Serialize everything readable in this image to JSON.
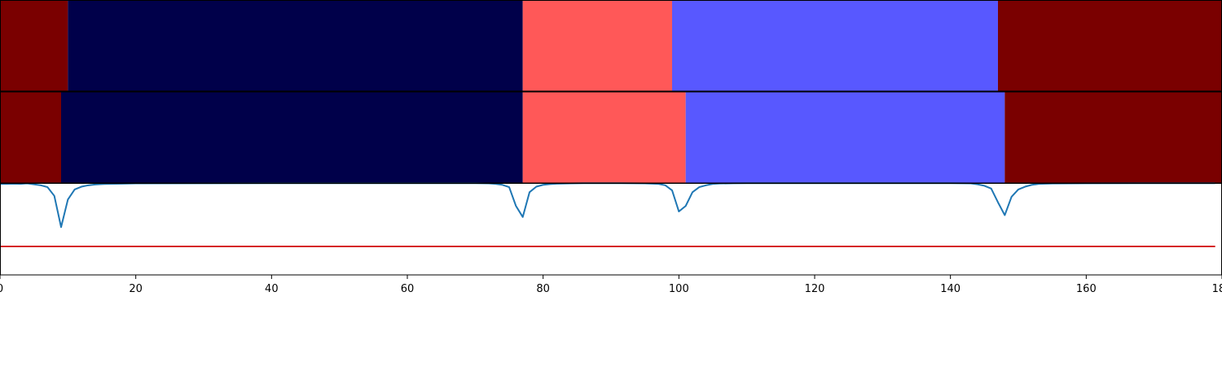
{
  "chart_data": {
    "type": "heatmap",
    "x_range": [
      0,
      180
    ],
    "x_ticks": [
      0,
      20,
      40,
      60,
      80,
      100,
      120,
      140,
      160,
      180
    ],
    "x_tick_labels": [
      "0",
      "20",
      "40",
      "60",
      "80",
      "100",
      "120",
      "140",
      "160",
      "180"
    ],
    "segment_rows": [
      {
        "segments": [
          {
            "start": 0,
            "end": 10,
            "color": "#7a0000"
          },
          {
            "start": 10,
            "end": 77,
            "color": "#00004a"
          },
          {
            "start": 77,
            "end": 99,
            "color": "#ff5858"
          },
          {
            "start": 99,
            "end": 147,
            "color": "#5858ff"
          },
          {
            "start": 147,
            "end": 180,
            "color": "#7a0000"
          }
        ]
      },
      {
        "segments": [
          {
            "start": 0,
            "end": 9,
            "color": "#7a0000"
          },
          {
            "start": 9,
            "end": 77,
            "color": "#00004a"
          },
          {
            "start": 77,
            "end": 101,
            "color": "#ff5858"
          },
          {
            "start": 101,
            "end": 148,
            "color": "#5858ff"
          },
          {
            "start": 148,
            "end": 180,
            "color": "#7a0000"
          }
        ]
      }
    ],
    "line_panel": {
      "y_range": [
        0,
        1
      ],
      "signal": {
        "color": "#1f77b4",
        "x": [
          0,
          1,
          2,
          3,
          4,
          5,
          6,
          7,
          8,
          9,
          10,
          11,
          12,
          13,
          14,
          15,
          16,
          18,
          20,
          30,
          40,
          50,
          60,
          70,
          72,
          73,
          74,
          75,
          76,
          77,
          78,
          79,
          80,
          81,
          82,
          84,
          86,
          90,
          95,
          97,
          98,
          99,
          100,
          101,
          102,
          103,
          104,
          105,
          106,
          108,
          110,
          120,
          130,
          140,
          143,
          144,
          145,
          146,
          147,
          148,
          149,
          150,
          151,
          152,
          153,
          155,
          160,
          170,
          179
        ],
        "y": [
          0.99,
          0.99,
          0.992,
          0.99,
          0.995,
          0.985,
          0.975,
          0.955,
          0.86,
          0.52,
          0.82,
          0.93,
          0.96,
          0.975,
          0.983,
          0.988,
          0.99,
          0.992,
          0.995,
          0.997,
          0.998,
          0.998,
          0.998,
          0.998,
          0.996,
          0.99,
          0.98,
          0.955,
          0.75,
          0.63,
          0.9,
          0.96,
          0.98,
          0.988,
          0.992,
          0.996,
          0.998,
          0.998,
          0.996,
          0.99,
          0.975,
          0.92,
          0.69,
          0.75,
          0.9,
          0.955,
          0.975,
          0.99,
          0.994,
          0.997,
          0.998,
          0.998,
          0.998,
          0.998,
          0.995,
          0.985,
          0.97,
          0.94,
          0.79,
          0.65,
          0.85,
          0.93,
          0.96,
          0.98,
          0.99,
          0.994,
          0.997,
          0.998,
          0.998
        ]
      },
      "threshold": {
        "color": "#d62728",
        "x": [
          0,
          179
        ],
        "y": [
          0.31,
          0.31
        ]
      }
    }
  }
}
